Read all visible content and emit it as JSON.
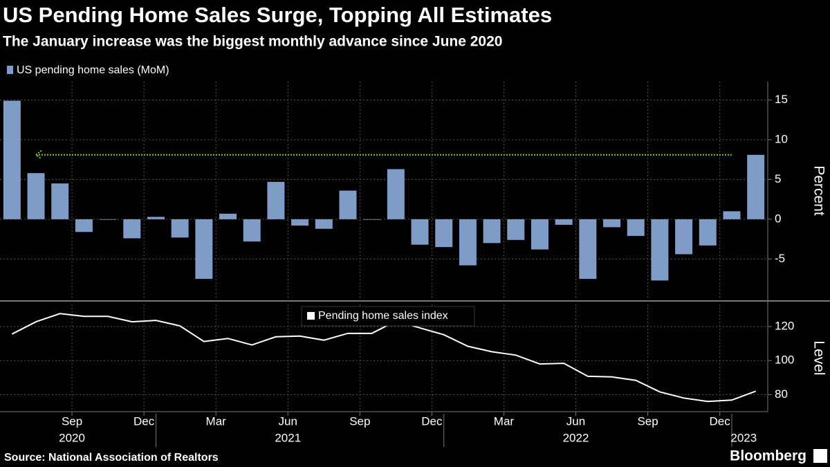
{
  "title": "US Pending Home Sales Surge, Topping All Estimates",
  "subtitle": "The January increase was the biggest monthly advance since June 2020",
  "source": "Source: National Association of Realtors",
  "brand": "Bloomberg",
  "chart_data": [
    {
      "type": "bar",
      "series": [
        {
          "name": "US pending home sales (MoM)",
          "color": "#7f9cc6",
          "values": [
            14.9,
            5.8,
            4.5,
            -1.6,
            0,
            -2.4,
            0.3,
            -2.3,
            -7.5,
            0.7,
            -2.8,
            4.7,
            -0.8,
            -1.2,
            3.6,
            0,
            6.3,
            -3.2,
            -3.5,
            -5.8,
            -3.0,
            -2.6,
            -3.8,
            -0.7,
            -7.5,
            -1.0,
            -2.1,
            -7.7,
            -4.4,
            -3.3,
            1.0,
            8.1
          ]
        }
      ],
      "ylim": [
        -10.1,
        17.3
      ],
      "yticks": [
        -5,
        0,
        5,
        10,
        15
      ],
      "y_label": "Percent",
      "grid": true,
      "reference_color": "#7ed321"
    },
    {
      "type": "line",
      "categories": [
        null,
        null,
        null,
        "Sep",
        null,
        null,
        "Dec",
        null,
        null,
        "Mar",
        null,
        null,
        "Jun",
        null,
        null,
        "Sep",
        null,
        null,
        "Dec",
        null,
        null,
        "Mar",
        null,
        null,
        "Jun",
        null,
        null,
        "Sep",
        null,
        null,
        "Dec",
        null
      ],
      "years": [
        null,
        null,
        null,
        "2020",
        null,
        null,
        null,
        null,
        null,
        null,
        null,
        null,
        "2021",
        null,
        null,
        null,
        null,
        null,
        null,
        null,
        null,
        null,
        null,
        null,
        "2022",
        null,
        null,
        null,
        null,
        null,
        null,
        "2023"
      ],
      "series": [
        {
          "name": "Pending home sales index",
          "color": "#ffffff",
          "values": [
            115.6,
            122.8,
            127.6,
            126,
            126,
            122.8,
            123.6,
            120.4,
            111.2,
            113,
            109.2,
            114,
            114.4,
            112,
            116,
            116,
            123.2,
            119.2,
            115.2,
            108.4,
            105.2,
            103.2,
            98,
            98.4,
            90.8,
            90.4,
            88.4,
            81.6,
            78,
            76,
            76.8,
            82
          ]
        }
      ],
      "ylim": [
        70,
        133
      ],
      "yticks": [
        80,
        100,
        120
      ],
      "y_label": "Level",
      "grid": true
    }
  ]
}
